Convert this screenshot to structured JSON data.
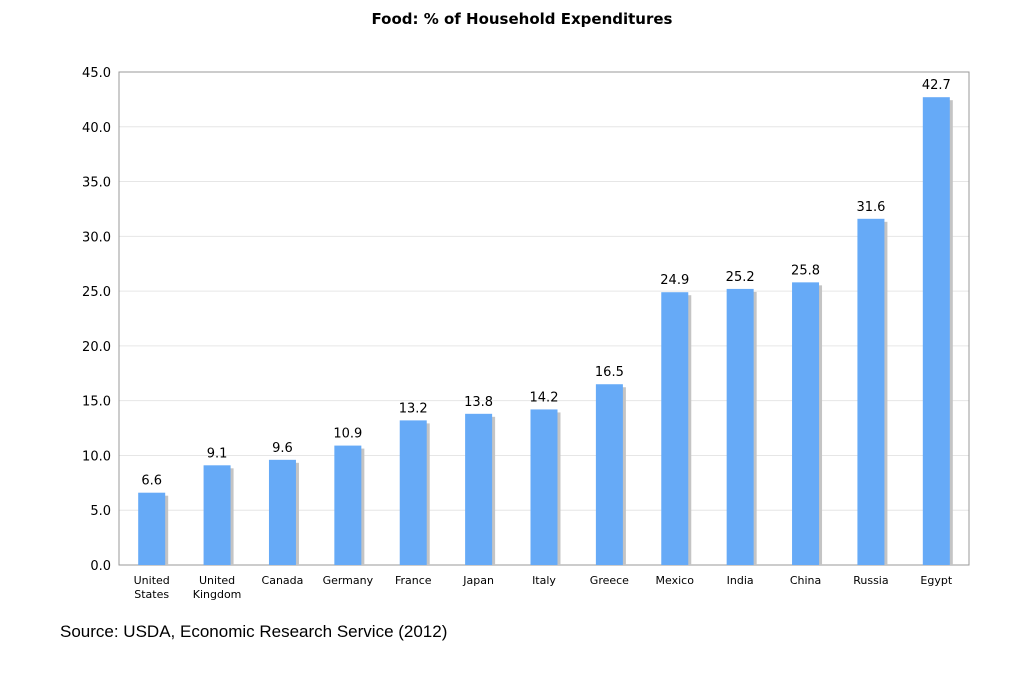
{
  "chart_data": {
    "type": "bar",
    "title": "Food: % of Household Expenditures",
    "xlabel": "",
    "ylabel": "",
    "ylim": [
      0,
      45
    ],
    "yticks": [
      "0.0",
      "5.0",
      "10.0",
      "15.0",
      "20.0",
      "25.0",
      "30.0",
      "35.0",
      "40.0",
      "45.0"
    ],
    "grid": true,
    "categories": [
      [
        "United",
        "States"
      ],
      [
        "United",
        "Kingdom"
      ],
      [
        "Canada"
      ],
      [
        "Germany"
      ],
      [
        "France"
      ],
      [
        "Japan"
      ],
      [
        "Italy"
      ],
      [
        "Greece"
      ],
      [
        "Mexico"
      ],
      [
        "India"
      ],
      [
        "China"
      ],
      [
        "Russia"
      ],
      [
        "Egypt"
      ]
    ],
    "values": [
      6.6,
      9.1,
      9.6,
      10.9,
      13.2,
      13.8,
      14.2,
      16.5,
      24.9,
      25.2,
      25.8,
      31.6,
      42.7
    ],
    "data_labels": [
      "6.6",
      "9.1",
      "9.6",
      "10.9",
      "13.2",
      "13.8",
      "14.2",
      "16.5",
      "24.9",
      "25.2",
      "25.8",
      "31.6",
      "42.7"
    ],
    "colors": {
      "bar": "#66aaf7",
      "bar_shadow": "#c4c4c4",
      "gridline": "#e6e6e6",
      "axis": "#999999"
    }
  },
  "source": "Source: USDA, Economic Research Service (2012)"
}
